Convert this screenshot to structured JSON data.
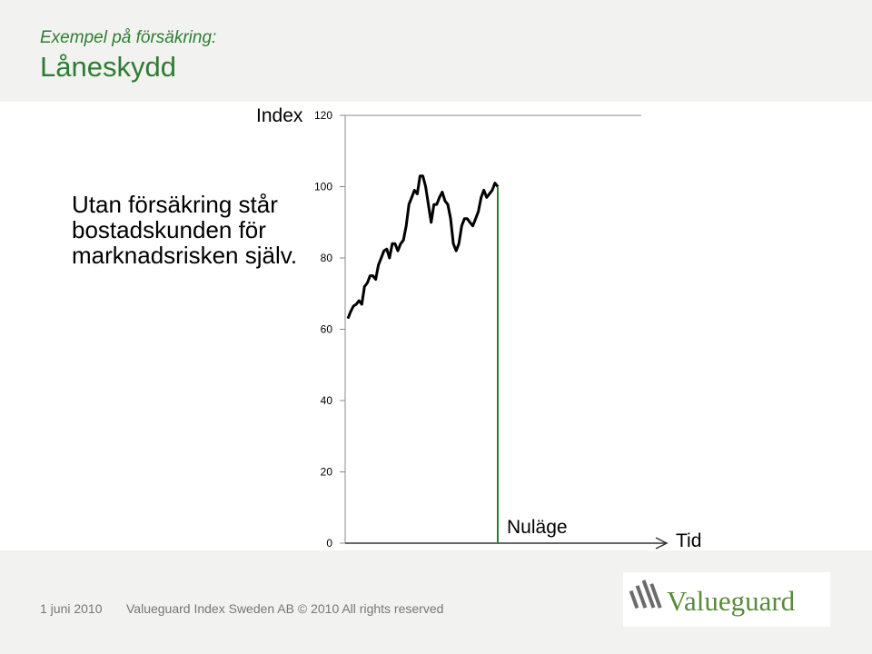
{
  "header": {
    "subtitle": "Exempel på försäkring:",
    "title": "Låneskydd"
  },
  "body_text": "Utan försäkring står bostadskunden för marknadsrisken själv.",
  "footer": {
    "date": "1 juni 2010",
    "copyright": "Valueguard Index Sweden AB © 2010 All rights reserved",
    "logo_text": "Valueguard"
  },
  "colors": {
    "title": "#2e7d32",
    "line": "#000000",
    "marker": "#2e7d32",
    "logo": "#5a8a3a"
  },
  "chart_data": {
    "type": "line",
    "ylabel": "Index",
    "xlabel": "Tid",
    "ylim": [
      0,
      120
    ],
    "yticks": [
      0,
      20,
      40,
      60,
      80,
      100,
      120
    ],
    "grid": false,
    "marker_label": "Nuläge",
    "series": [
      {
        "x": [
          0,
          1,
          2,
          3,
          4,
          5,
          6,
          7,
          8,
          9,
          10,
          11,
          12,
          13,
          14,
          15,
          16,
          17,
          18,
          19,
          20,
          21,
          22,
          23,
          24,
          25,
          26,
          27,
          28,
          29,
          30,
          31,
          32,
          33,
          34,
          35,
          36,
          37,
          38,
          39,
          40,
          41,
          42,
          43,
          44,
          45,
          46,
          47,
          48,
          49,
          50,
          51,
          52,
          53,
          54
        ],
        "values": [
          63,
          65,
          66.5,
          67,
          68,
          67,
          72,
          73,
          75,
          75,
          74,
          78,
          80,
          82,
          82.5,
          80,
          84,
          84,
          82,
          84,
          85,
          89,
          95,
          97,
          99,
          98,
          103,
          103,
          100,
          95,
          90,
          95,
          95,
          97,
          98.5,
          96,
          95,
          91,
          84,
          82,
          84,
          89,
          91,
          91,
          90,
          89,
          91,
          93,
          97,
          99,
          97,
          98,
          99,
          101,
          100
        ]
      }
    ]
  }
}
